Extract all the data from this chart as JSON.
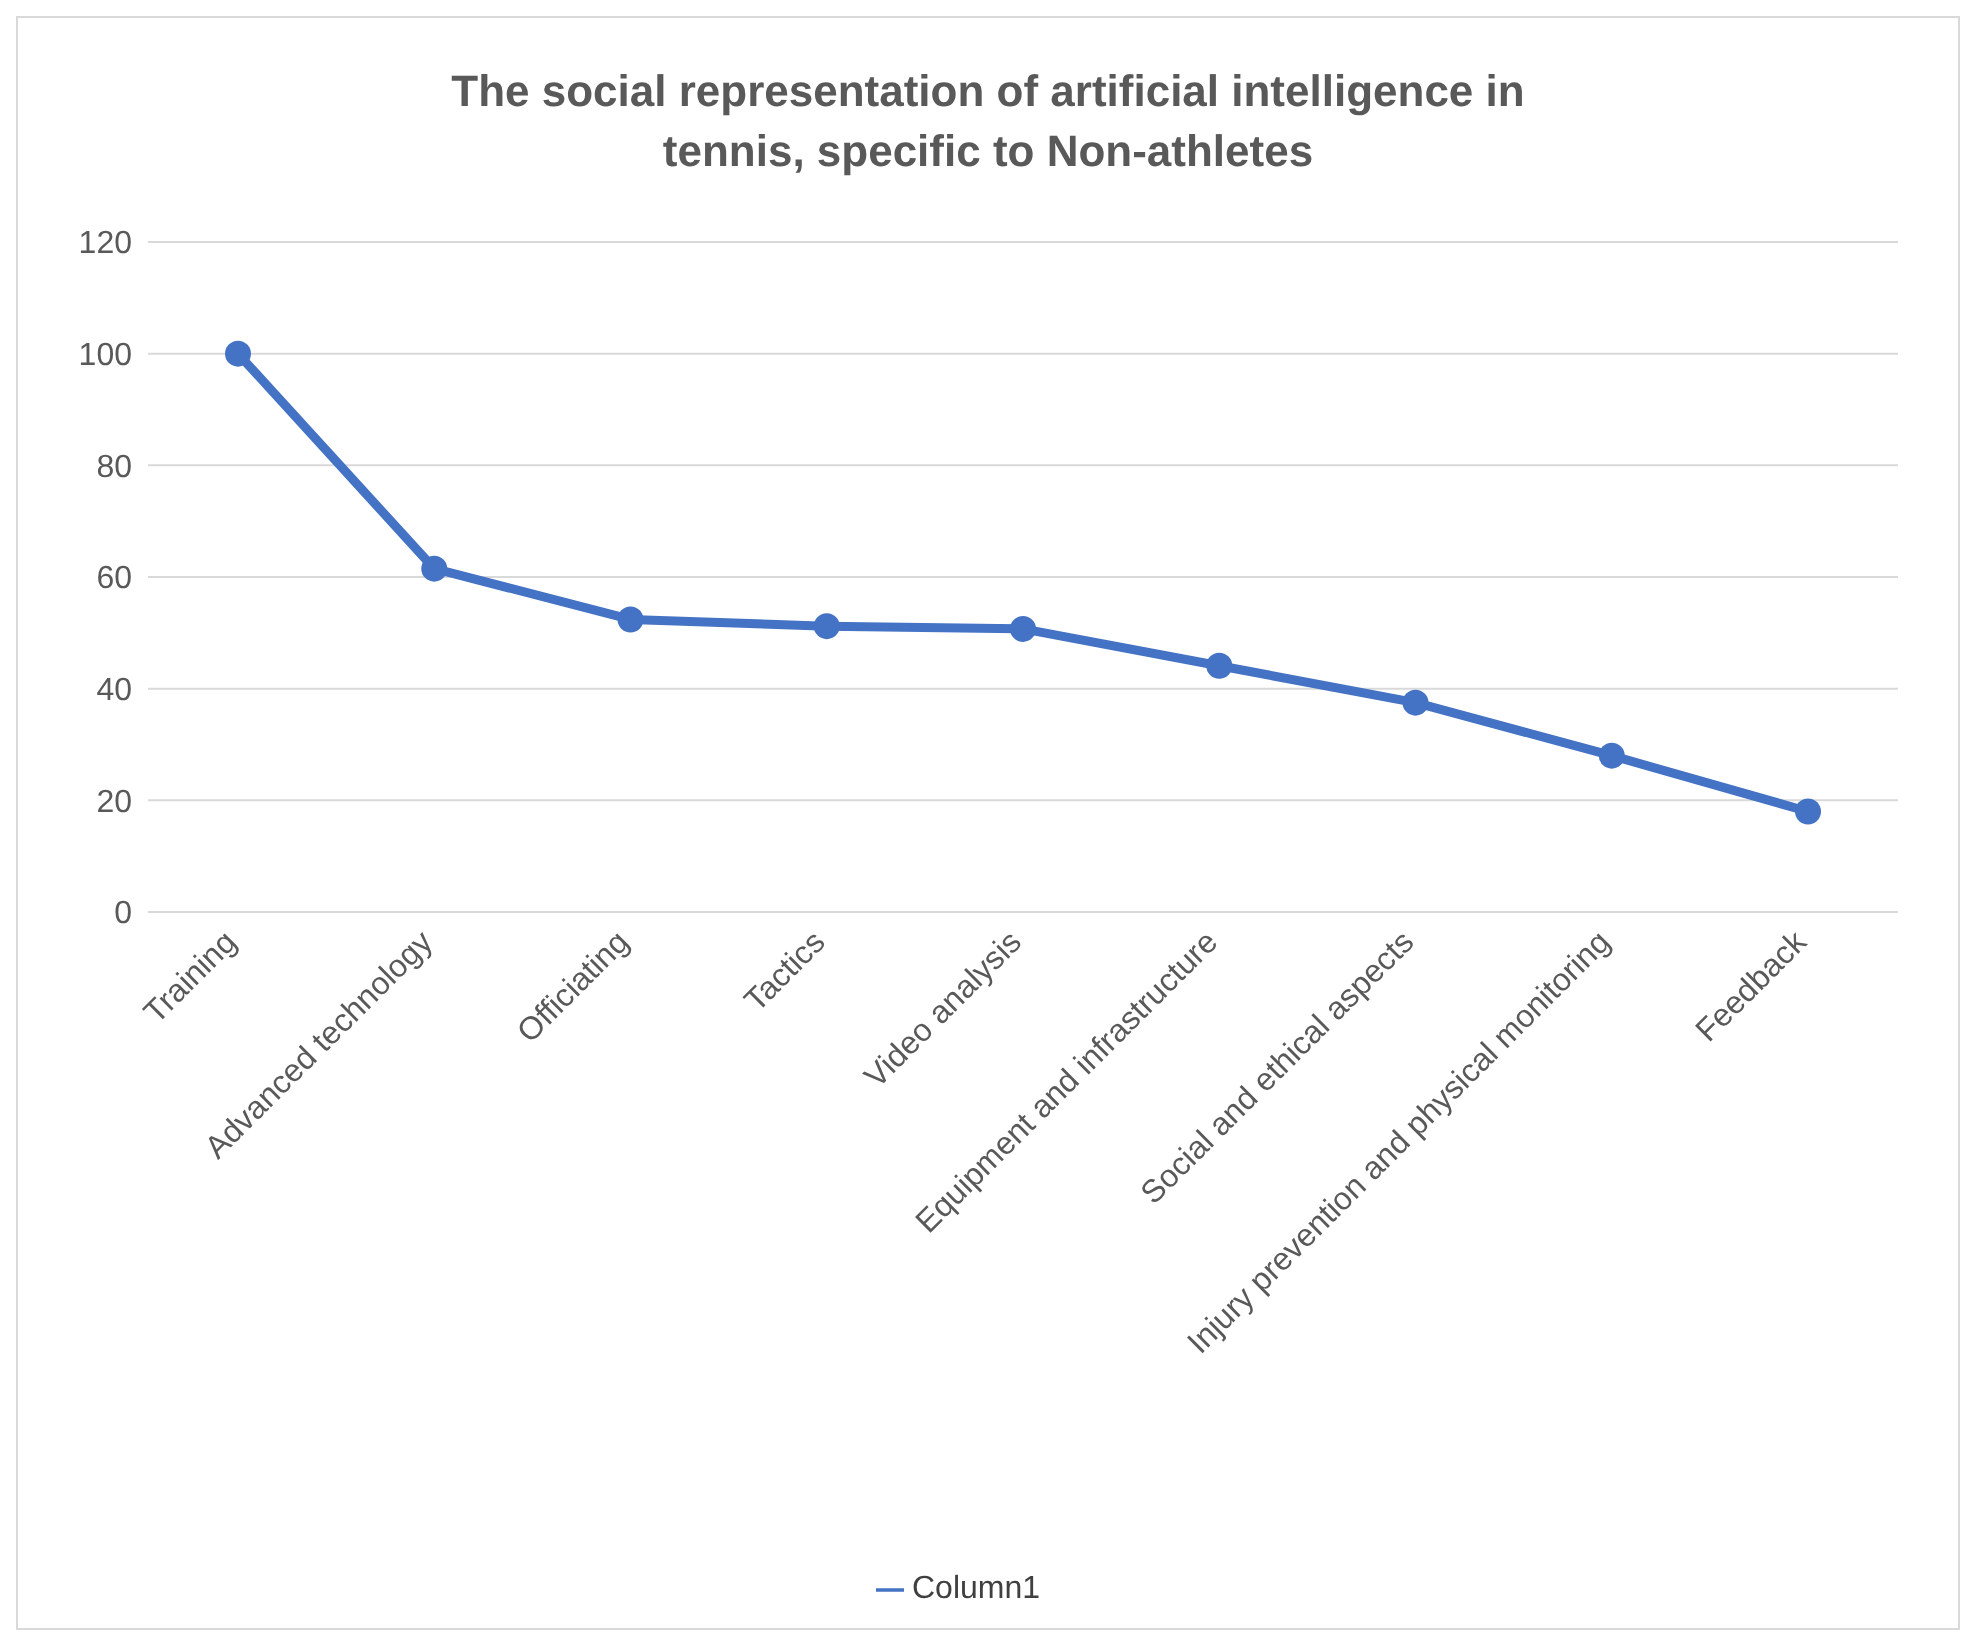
{
  "chart_data": {
    "type": "line",
    "title": "The social representation of artificial intelligence in tennis, specific to Non-athletes",
    "categories": [
      "Training",
      "Advanced technology",
      "Officiating",
      "Tactics",
      "Video analysis",
      "Equipment and infrastructure",
      "Social and ethical aspects",
      "Injury prevention and physical monitoring",
      "Feedback"
    ],
    "series": [
      {
        "name": "Column1",
        "color": "#4472c4",
        "values": [
          100,
          61.5,
          52.4,
          51.2,
          50.7,
          44.1,
          37.5,
          28,
          18
        ]
      }
    ],
    "ylim": [
      0,
      120
    ],
    "yticks": [
      0,
      20,
      40,
      60,
      80,
      100,
      120
    ],
    "grid": "y",
    "legend": "bottom",
    "marker": "circle",
    "line_style": "solid"
  }
}
